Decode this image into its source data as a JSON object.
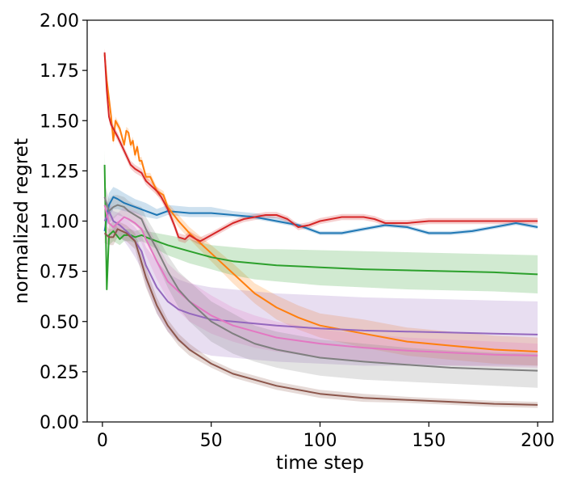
{
  "chart_data": {
    "type": "line",
    "title": "",
    "xlabel": "time step",
    "ylabel": "normalized regret",
    "xlim": [
      -7,
      207
    ],
    "ylim": [
      0,
      2.0
    ],
    "xticks": [
      0,
      50,
      100,
      150,
      200
    ],
    "xtick_labels": [
      "0",
      "50",
      "100",
      "150",
      "200"
    ],
    "yticks": [
      0,
      0.25,
      0.5,
      0.75,
      1.0,
      1.25,
      1.5,
      1.75,
      2.0
    ],
    "ytick_labels": [
      "0.00",
      "0.25",
      "0.50",
      "0.75",
      "1.00",
      "1.25",
      "1.50",
      "1.75",
      "2.00"
    ],
    "grid": false,
    "legend": "none",
    "series": [
      {
        "name": "blue",
        "color": "#1f77b4",
        "x": [
          1,
          2,
          3,
          5,
          7,
          10,
          15,
          20,
          25,
          30,
          40,
          50,
          60,
          70,
          80,
          90,
          100,
          110,
          120,
          130,
          140,
          150,
          160,
          170,
          180,
          190,
          200
        ],
        "y": [
          0.95,
          1.02,
          1.08,
          1.12,
          1.11,
          1.09,
          1.07,
          1.05,
          1.03,
          1.05,
          1.04,
          1.04,
          1.03,
          1.02,
          1.0,
          0.98,
          0.94,
          0.94,
          0.96,
          0.98,
          0.97,
          0.94,
          0.94,
          0.95,
          0.97,
          0.99,
          0.97
        ],
        "lower": [
          0.92,
          0.97,
          1.02,
          1.06,
          1.06,
          1.05,
          1.04,
          1.02,
          1.01,
          1.03,
          1.02,
          1.02,
          1.02,
          1.01,
          0.99,
          0.97,
          0.93,
          0.93,
          0.95,
          0.97,
          0.96,
          0.93,
          0.93,
          0.94,
          0.96,
          0.98,
          0.96
        ],
        "upper": [
          0.98,
          1.08,
          1.14,
          1.17,
          1.16,
          1.14,
          1.11,
          1.09,
          1.06,
          1.08,
          1.07,
          1.07,
          1.05,
          1.04,
          1.02,
          0.99,
          0.95,
          0.95,
          0.97,
          0.99,
          0.98,
          0.95,
          0.95,
          0.96,
          0.98,
          1.0,
          0.98
        ]
      },
      {
        "name": "orange",
        "color": "#ff7f0e",
        "x": [
          1,
          2,
          4,
          5,
          6,
          8,
          10,
          11,
          12,
          13,
          14,
          15,
          16,
          17,
          18,
          20,
          22,
          25,
          28,
          30,
          35,
          40,
          50,
          60,
          70,
          80,
          90,
          100,
          120,
          140,
          160,
          180,
          200
        ],
        "y": [
          1.83,
          1.7,
          1.52,
          1.4,
          1.5,
          1.46,
          1.38,
          1.45,
          1.44,
          1.38,
          1.4,
          1.33,
          1.37,
          1.3,
          1.3,
          1.22,
          1.22,
          1.15,
          1.13,
          1.07,
          1.0,
          0.94,
          0.84,
          0.74,
          0.64,
          0.57,
          0.52,
          0.48,
          0.44,
          0.4,
          0.38,
          0.36,
          0.35
        ],
        "lower": [
          1.8,
          1.68,
          1.5,
          1.38,
          1.48,
          1.44,
          1.36,
          1.43,
          1.42,
          1.36,
          1.38,
          1.31,
          1.35,
          1.28,
          1.28,
          1.2,
          1.2,
          1.13,
          1.11,
          1.05,
          0.97,
          0.91,
          0.8,
          0.69,
          0.59,
          0.51,
          0.46,
          0.42,
          0.37,
          0.33,
          0.31,
          0.29,
          0.28
        ],
        "upper": [
          1.86,
          1.72,
          1.54,
          1.42,
          1.52,
          1.48,
          1.4,
          1.47,
          1.46,
          1.4,
          1.42,
          1.35,
          1.39,
          1.32,
          1.32,
          1.24,
          1.24,
          1.17,
          1.15,
          1.09,
          1.03,
          0.97,
          0.88,
          0.79,
          0.69,
          0.63,
          0.58,
          0.54,
          0.51,
          0.47,
          0.45,
          0.43,
          0.42
        ]
      },
      {
        "name": "green",
        "color": "#2ca02c",
        "x": [
          1,
          2,
          3,
          5,
          8,
          10,
          13,
          15,
          18,
          20,
          25,
          30,
          40,
          50,
          60,
          70,
          80,
          100,
          120,
          140,
          160,
          180,
          200
        ],
        "y": [
          1.28,
          0.66,
          0.93,
          0.95,
          0.91,
          0.93,
          0.93,
          0.92,
          0.93,
          0.92,
          0.9,
          0.88,
          0.85,
          0.82,
          0.8,
          0.79,
          0.78,
          0.77,
          0.76,
          0.755,
          0.75,
          0.745,
          0.735
        ],
        "lower": [
          1.2,
          0.64,
          0.88,
          0.9,
          0.88,
          0.9,
          0.9,
          0.89,
          0.9,
          0.89,
          0.86,
          0.83,
          0.79,
          0.76,
          0.73,
          0.71,
          0.7,
          0.68,
          0.67,
          0.66,
          0.655,
          0.65,
          0.64
        ],
        "upper": [
          1.35,
          0.68,
          0.98,
          1.0,
          0.95,
          0.96,
          0.96,
          0.95,
          0.96,
          0.95,
          0.94,
          0.93,
          0.91,
          0.88,
          0.87,
          0.86,
          0.86,
          0.855,
          0.85,
          0.845,
          0.84,
          0.835,
          0.83
        ]
      },
      {
        "name": "red",
        "color": "#d62728",
        "x": [
          1,
          2,
          3,
          4,
          5,
          7,
          10,
          13,
          15,
          18,
          20,
          23,
          25,
          27,
          30,
          33,
          35,
          38,
          40,
          43,
          45,
          50,
          55,
          60,
          65,
          70,
          75,
          80,
          85,
          90,
          95,
          100,
          110,
          115,
          120,
          125,
          130,
          140,
          150,
          160,
          170,
          180,
          190,
          200
        ],
        "y": [
          1.84,
          1.65,
          1.52,
          1.48,
          1.46,
          1.42,
          1.35,
          1.28,
          1.26,
          1.24,
          1.2,
          1.17,
          1.15,
          1.12,
          1.06,
          0.98,
          0.92,
          0.91,
          0.93,
          0.91,
          0.9,
          0.93,
          0.96,
          0.99,
          1.01,
          1.02,
          1.03,
          1.03,
          1.01,
          0.97,
          0.98,
          1.0,
          1.02,
          1.02,
          1.02,
          1.01,
          0.99,
          0.99,
          1.0,
          1.0,
          1.0,
          1.0,
          1.0,
          1.0
        ],
        "lower": [
          1.82,
          1.63,
          1.5,
          1.46,
          1.44,
          1.4,
          1.33,
          1.26,
          1.24,
          1.22,
          1.18,
          1.15,
          1.13,
          1.1,
          1.04,
          0.96,
          0.9,
          0.89,
          0.91,
          0.89,
          0.88,
          0.915,
          0.945,
          0.975,
          0.995,
          1.005,
          1.015,
          1.015,
          0.995,
          0.955,
          0.965,
          0.985,
          1.005,
          1.005,
          1.005,
          0.995,
          0.975,
          0.975,
          0.985,
          0.985,
          0.985,
          0.985,
          0.985,
          0.985
        ],
        "upper": [
          1.86,
          1.67,
          1.54,
          1.5,
          1.48,
          1.44,
          1.37,
          1.3,
          1.28,
          1.26,
          1.22,
          1.19,
          1.17,
          1.14,
          1.08,
          1.0,
          0.94,
          0.93,
          0.95,
          0.93,
          0.92,
          0.945,
          0.975,
          1.005,
          1.025,
          1.035,
          1.045,
          1.045,
          1.025,
          0.985,
          0.995,
          1.015,
          1.035,
          1.035,
          1.035,
          1.025,
          1.005,
          1.005,
          1.015,
          1.015,
          1.015,
          1.015,
          1.015,
          1.015
        ]
      },
      {
        "name": "purple",
        "color": "#9467bd",
        "x": [
          1,
          3,
          5,
          8,
          10,
          12,
          15,
          18,
          20,
          25,
          30,
          35,
          40,
          50,
          60,
          70,
          80,
          100,
          120,
          140,
          160,
          180,
          200
        ],
        "y": [
          1.0,
          1.05,
          1.0,
          0.98,
          0.96,
          0.94,
          0.9,
          0.85,
          0.78,
          0.67,
          0.6,
          0.56,
          0.54,
          0.51,
          0.5,
          0.49,
          0.48,
          0.465,
          0.455,
          0.45,
          0.445,
          0.44,
          0.435
        ],
        "lower": [
          0.95,
          1.0,
          0.95,
          0.92,
          0.9,
          0.87,
          0.82,
          0.76,
          0.68,
          0.54,
          0.45,
          0.4,
          0.36,
          0.33,
          0.32,
          0.31,
          0.3,
          0.29,
          0.28,
          0.28,
          0.28,
          0.28,
          0.28
        ],
        "upper": [
          1.05,
          1.1,
          1.05,
          1.04,
          1.02,
          1.0,
          0.97,
          0.93,
          0.87,
          0.8,
          0.74,
          0.71,
          0.69,
          0.67,
          0.66,
          0.65,
          0.64,
          0.63,
          0.62,
          0.615,
          0.61,
          0.605,
          0.6
        ]
      },
      {
        "name": "brown",
        "color": "#8c564b",
        "x": [
          1,
          3,
          5,
          7,
          9,
          11,
          13,
          15,
          17,
          20,
          25,
          30,
          35,
          40,
          50,
          60,
          70,
          80,
          100,
          120,
          140,
          160,
          180,
          200
        ],
        "y": [
          0.94,
          0.92,
          0.92,
          0.96,
          0.95,
          0.94,
          0.92,
          0.9,
          0.83,
          0.72,
          0.58,
          0.48,
          0.41,
          0.36,
          0.29,
          0.24,
          0.21,
          0.18,
          0.14,
          0.12,
          0.11,
          0.1,
          0.09,
          0.085
        ],
        "lower": [
          0.89,
          0.88,
          0.88,
          0.92,
          0.91,
          0.9,
          0.88,
          0.86,
          0.78,
          0.67,
          0.54,
          0.45,
          0.38,
          0.33,
          0.27,
          0.22,
          0.19,
          0.16,
          0.12,
          0.1,
          0.095,
          0.085,
          0.075,
          0.07
        ],
        "upper": [
          0.99,
          0.96,
          0.96,
          1.0,
          0.99,
          0.98,
          0.96,
          0.94,
          0.88,
          0.77,
          0.62,
          0.51,
          0.44,
          0.39,
          0.31,
          0.26,
          0.23,
          0.2,
          0.16,
          0.14,
          0.125,
          0.115,
          0.105,
          0.1
        ]
      },
      {
        "name": "pink",
        "color": "#e377c2",
        "x": [
          1,
          3,
          5,
          8,
          10,
          12,
          15,
          18,
          20,
          25,
          30,
          35,
          40,
          50,
          60,
          70,
          80,
          100,
          120,
          140,
          160,
          180,
          200
        ],
        "y": [
          1.08,
          0.99,
          0.97,
          1.0,
          1.02,
          1.01,
          0.99,
          0.96,
          0.91,
          0.8,
          0.7,
          0.65,
          0.6,
          0.53,
          0.48,
          0.45,
          0.42,
          0.39,
          0.37,
          0.355,
          0.345,
          0.335,
          0.33
        ],
        "lower": [
          1.02,
          0.93,
          0.92,
          0.95,
          0.97,
          0.96,
          0.93,
          0.89,
          0.83,
          0.71,
          0.61,
          0.55,
          0.5,
          0.44,
          0.4,
          0.37,
          0.35,
          0.32,
          0.3,
          0.29,
          0.28,
          0.275,
          0.27
        ],
        "upper": [
          1.14,
          1.05,
          1.02,
          1.05,
          1.07,
          1.06,
          1.05,
          1.03,
          0.99,
          0.89,
          0.79,
          0.74,
          0.7,
          0.63,
          0.57,
          0.53,
          0.5,
          0.46,
          0.44,
          0.42,
          0.41,
          0.4,
          0.39
        ]
      },
      {
        "name": "gray",
        "color": "#7f7f7f",
        "x": [
          1,
          3,
          5,
          7,
          10,
          12,
          15,
          18,
          20,
          25,
          30,
          35,
          40,
          50,
          60,
          70,
          80,
          100,
          120,
          140,
          160,
          180,
          200
        ],
        "y": [
          1.12,
          1.05,
          1.07,
          1.08,
          1.07,
          1.05,
          1.03,
          1.01,
          0.96,
          0.86,
          0.75,
          0.66,
          0.6,
          0.5,
          0.44,
          0.39,
          0.36,
          0.32,
          0.3,
          0.285,
          0.27,
          0.262,
          0.255
        ],
        "lower": [
          1.05,
          0.99,
          1.01,
          1.03,
          1.02,
          1.0,
          0.98,
          0.95,
          0.9,
          0.79,
          0.67,
          0.57,
          0.5,
          0.4,
          0.34,
          0.3,
          0.27,
          0.23,
          0.21,
          0.2,
          0.19,
          0.18,
          0.17
        ],
        "upper": [
          1.19,
          1.11,
          1.13,
          1.13,
          1.12,
          1.1,
          1.08,
          1.07,
          1.02,
          0.93,
          0.83,
          0.75,
          0.7,
          0.6,
          0.54,
          0.48,
          0.45,
          0.41,
          0.39,
          0.37,
          0.355,
          0.345,
          0.34
        ]
      }
    ]
  }
}
